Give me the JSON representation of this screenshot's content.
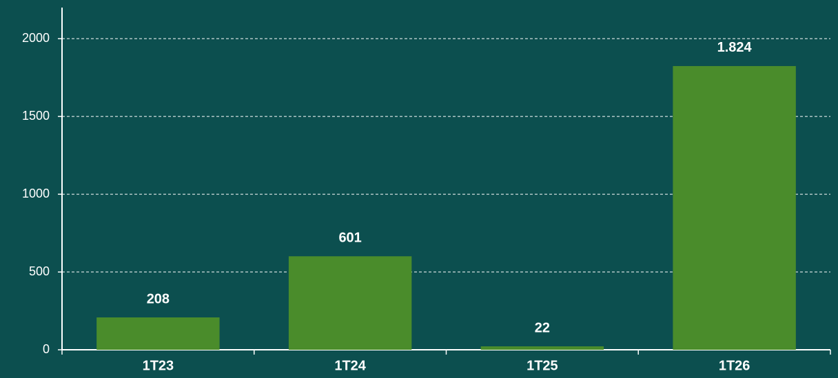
{
  "chart_data": {
    "type": "bar",
    "categories": [
      "1T23",
      "1T24",
      "1T25",
      "1T26"
    ],
    "values": [
      208,
      601,
      22,
      1824
    ],
    "value_labels": [
      "208",
      "601",
      "22",
      "1.824"
    ],
    "color": "#4a8c2b",
    "ylim": [
      0,
      2200
    ],
    "yticks": [
      0,
      500,
      1000,
      1500,
      2000
    ],
    "grid": true
  }
}
